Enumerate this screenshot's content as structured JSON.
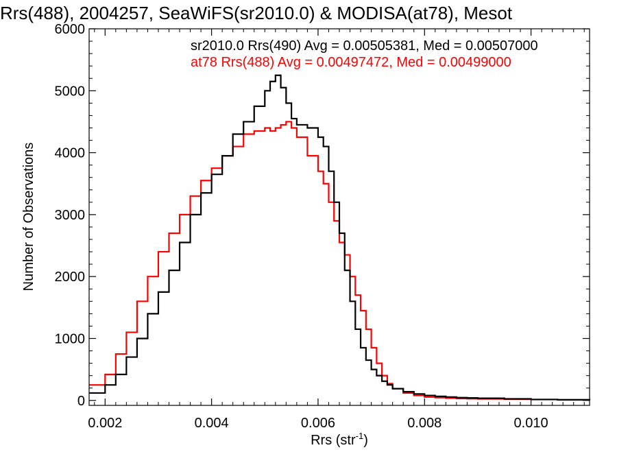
{
  "chart_data": {
    "type": "line",
    "title": "Rrs(488), 2004257, SeaWiFS(sr2010.0) & MODISA(at78), Mesot",
    "xlabel": "Rrs (str",
    "xlabel_sup": "-1",
    "xlabel_close": ")",
    "ylabel": "Number of Observations",
    "xlim": [
      0.0017,
      0.0111
    ],
    "ylim": [
      -80,
      6000
    ],
    "xticks": [
      0.002,
      0.004,
      0.006,
      0.008,
      0.01
    ],
    "xtick_labels": [
      "0.002",
      "0.004",
      "0.006",
      "0.008",
      "0.010"
    ],
    "yticks": [
      0,
      1000,
      2000,
      3000,
      4000,
      5000,
      6000
    ],
    "ytick_labels": [
      "0",
      "1000",
      "2000",
      "3000",
      "4000",
      "5000",
      "6000"
    ],
    "grid": false,
    "legend_position": "top-right",
    "series": [
      {
        "name": "sr2010.0 Rrs(490) Avg = 0.00505381, Med = 0.00507000",
        "color": "#000000",
        "x": [
          0.0017,
          0.002,
          0.0022,
          0.0024,
          0.0026,
          0.0028,
          0.003,
          0.0032,
          0.0034,
          0.0036,
          0.0038,
          0.004,
          0.0042,
          0.0044,
          0.0046,
          0.0048,
          0.005,
          0.0051,
          0.0052,
          0.0053,
          0.0054,
          0.0055,
          0.0056,
          0.0058,
          0.006,
          0.0061,
          0.0062,
          0.0063,
          0.0064,
          0.0065,
          0.0066,
          0.0067,
          0.0068,
          0.0069,
          0.007,
          0.0071,
          0.0072,
          0.0073,
          0.0074,
          0.0076,
          0.0078,
          0.008,
          0.0082,
          0.0084,
          0.0086,
          0.0088,
          0.009,
          0.0095,
          0.01,
          0.0105,
          0.0111
        ],
        "y": [
          120,
          250,
          420,
          700,
          1000,
          1400,
          1750,
          2100,
          2550,
          3000,
          3350,
          3650,
          3950,
          4300,
          4500,
          4750,
          5000,
          5150,
          5250,
          5050,
          4800,
          4550,
          4450,
          4400,
          4250,
          4100,
          3700,
          3200,
          2700,
          2100,
          1600,
          1150,
          850,
          650,
          500,
          400,
          310,
          250,
          190,
          140,
          105,
          80,
          65,
          55,
          45,
          40,
          35,
          25,
          15,
          10,
          5
        ]
      },
      {
        "name": "at78 Rrs(488) Avg = 0.00497472, Med = 0.00499000",
        "color": "#ff0000",
        "x": [
          0.0017,
          0.002,
          0.0022,
          0.0024,
          0.0026,
          0.0028,
          0.003,
          0.0032,
          0.0034,
          0.0036,
          0.0038,
          0.004,
          0.0042,
          0.0044,
          0.0046,
          0.0048,
          0.005,
          0.0051,
          0.0052,
          0.0053,
          0.0054,
          0.0055,
          0.0056,
          0.0058,
          0.006,
          0.0061,
          0.0062,
          0.0063,
          0.0064,
          0.0065,
          0.0066,
          0.0067,
          0.0068,
          0.0069,
          0.007,
          0.0071,
          0.0072,
          0.0073,
          0.0074,
          0.0076,
          0.0078,
          0.008,
          0.0082,
          0.0084,
          0.0086,
          0.0088,
          0.009,
          0.0095,
          0.01,
          0.0105,
          0.0111
        ],
        "y": [
          250,
          420,
          750,
          1100,
          1600,
          2000,
          2400,
          2700,
          3000,
          3300,
          3550,
          3750,
          3950,
          4100,
          4300,
          4350,
          4400,
          4350,
          4400,
          4450,
          4500,
          4400,
          4250,
          3950,
          3700,
          3500,
          3200,
          2900,
          2550,
          2350,
          2000,
          1700,
          1450,
          1150,
          850,
          600,
          400,
          270,
          190,
          120,
          80,
          55,
          45,
          38,
          30,
          28,
          25,
          20,
          15,
          10,
          5
        ]
      }
    ]
  }
}
